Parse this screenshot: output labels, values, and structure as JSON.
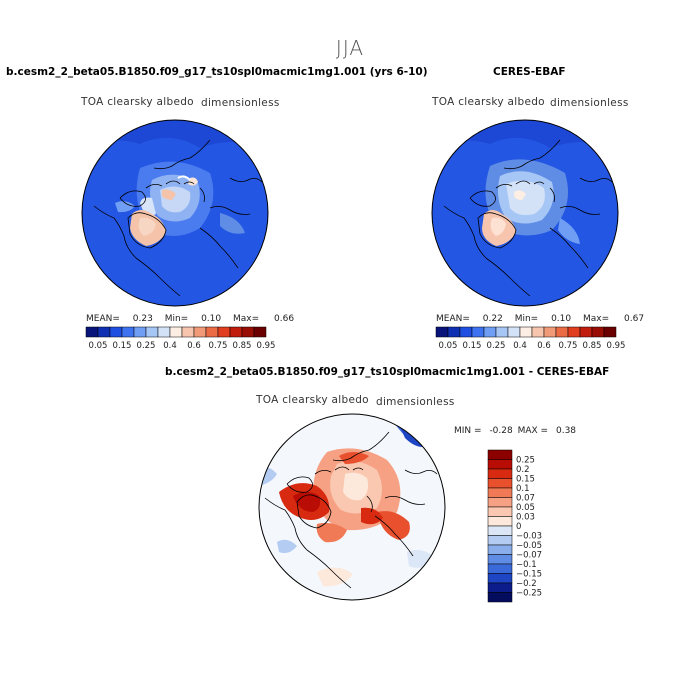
{
  "header": {
    "season": "JJA"
  },
  "chart_data": [
    {
      "type": "heatmap",
      "projection": "north polar stereographic",
      "title": "b.cesm2_2_beta05.B1850.f09_g17_ts10spl0macmic1mg1.001 (yrs 6-10)",
      "variable": "TOA clearsky albedo",
      "units": "dimensionless",
      "stats": {
        "mean_label": "MEAN=",
        "mean": "0.23",
        "min_label": "Min=",
        "min": "0.10",
        "max_label": "Max=",
        "max": "0.66"
      },
      "colorbar": {
        "levels": [
          0.05,
          0.1,
          0.15,
          0.2,
          0.25,
          0.3,
          0.4,
          0.5,
          0.6,
          0.7,
          0.75,
          0.8,
          0.85,
          0.9,
          0.95
        ],
        "tick_labels": [
          "0.05",
          "0.15",
          "0.25",
          "0.4",
          "0.6",
          "0.75",
          "0.85",
          "0.95"
        ],
        "colors": [
          "#08147a",
          "#1030b4",
          "#1f4fe0",
          "#3d72f0",
          "#6f9ef4",
          "#a6c6f6",
          "#d4e2f8",
          "#fdeee4",
          "#f7c5ae",
          "#f19a77",
          "#eb6b45",
          "#e03e1e",
          "#c01d0c",
          "#980d04",
          "#6a0000"
        ]
      }
    },
    {
      "type": "heatmap",
      "projection": "north polar stereographic",
      "title": "CERES-EBAF",
      "variable": "TOA clearsky albedo",
      "units": "dimensionless",
      "stats": {
        "mean_label": "MEAN=",
        "mean": "0.22",
        "min_label": "Min=",
        "min": "0.10",
        "max_label": "Max=",
        "max": "0.67"
      },
      "colorbar": {
        "levels": [
          0.05,
          0.1,
          0.15,
          0.2,
          0.25,
          0.3,
          0.4,
          0.5,
          0.6,
          0.7,
          0.75,
          0.8,
          0.85,
          0.9,
          0.95
        ],
        "tick_labels": [
          "0.05",
          "0.15",
          "0.25",
          "0.4",
          "0.6",
          "0.75",
          "0.85",
          "0.95"
        ],
        "colors": [
          "#08147a",
          "#1030b4",
          "#1f4fe0",
          "#3d72f0",
          "#6f9ef4",
          "#a6c6f6",
          "#d4e2f8",
          "#fdeee4",
          "#f7c5ae",
          "#f19a77",
          "#eb6b45",
          "#e03e1e",
          "#c01d0c",
          "#980d04",
          "#6a0000"
        ]
      }
    },
    {
      "type": "heatmap",
      "projection": "north polar stereographic",
      "title": "b.cesm2_2_beta05.B1850.f09_g17_ts10spl0macmic1mg1.001 - CERES-EBAF",
      "variable": "TOA clearsky albedo",
      "units": "dimensionless",
      "stats": {
        "min_label": "MIN =",
        "min": "-0.28",
        "max_label": "MAX =",
        "max": "0.38"
      },
      "colorbar": {
        "levels": [
          0.25,
          0.2,
          0.15,
          0.1,
          0.07,
          0.05,
          0.03,
          0,
          -0.03,
          -0.05,
          -0.07,
          -0.1,
          -0.15,
          -0.2,
          -0.25
        ],
        "tick_labels": [
          "0.25",
          "0.2",
          "0.15",
          "0.1",
          "0.07",
          "0.05",
          "0.03",
          "0",
          "−0.03",
          "−0.05",
          "−0.07",
          "−0.1",
          "−0.15",
          "−0.2",
          "−0.25"
        ],
        "colors": [
          "#8c0000",
          "#b80c04",
          "#d72a10",
          "#e8502e",
          "#f07a55",
          "#f6a184",
          "#fac7b0",
          "#fde9dc",
          "#dbe6f6",
          "#b4ccf2",
          "#8aaeec",
          "#5f8ce4",
          "#3a6ada",
          "#1e46c4",
          "#0c1c8a",
          "#040c5e"
        ]
      }
    }
  ]
}
